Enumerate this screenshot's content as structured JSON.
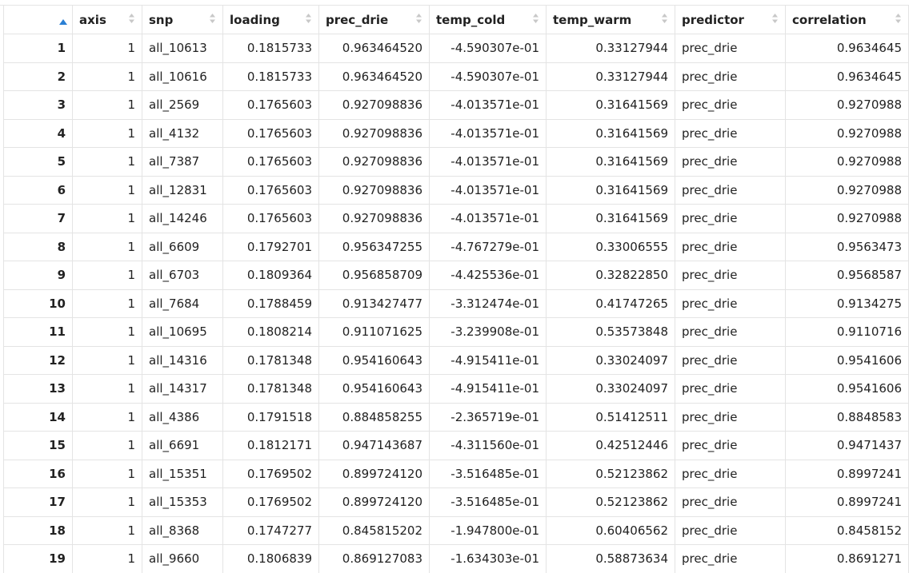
{
  "colors": {
    "sort_active": "#2a7fd4",
    "sort_inactive": "#c8c8c8",
    "grid": "#e4e4e4"
  },
  "columns": [
    {
      "key": "idx",
      "label": ""
    },
    {
      "key": "axis",
      "label": "axis"
    },
    {
      "key": "snp",
      "label": "snp"
    },
    {
      "key": "loading",
      "label": "loading"
    },
    {
      "key": "prec_drie",
      "label": "prec_drie"
    },
    {
      "key": "temp_cold",
      "label": "temp_cold"
    },
    {
      "key": "temp_warm",
      "label": "temp_warm"
    },
    {
      "key": "predictor",
      "label": "predictor"
    },
    {
      "key": "correlation",
      "label": "correlation"
    }
  ],
  "rows": [
    [
      "1",
      "1",
      "all_10613",
      "0.1815733",
      "0.963464520",
      "-4.590307e-01",
      "0.33127944",
      "prec_drie",
      "0.9634645"
    ],
    [
      "2",
      "1",
      "all_10616",
      "0.1815733",
      "0.963464520",
      "-4.590307e-01",
      "0.33127944",
      "prec_drie",
      "0.9634645"
    ],
    [
      "3",
      "1",
      "all_2569",
      "0.1765603",
      "0.927098836",
      "-4.013571e-01",
      "0.31641569",
      "prec_drie",
      "0.9270988"
    ],
    [
      "4",
      "1",
      "all_4132",
      "0.1765603",
      "0.927098836",
      "-4.013571e-01",
      "0.31641569",
      "prec_drie",
      "0.9270988"
    ],
    [
      "5",
      "1",
      "all_7387",
      "0.1765603",
      "0.927098836",
      "-4.013571e-01",
      "0.31641569",
      "prec_drie",
      "0.9270988"
    ],
    [
      "6",
      "1",
      "all_12831",
      "0.1765603",
      "0.927098836",
      "-4.013571e-01",
      "0.31641569",
      "prec_drie",
      "0.9270988"
    ],
    [
      "7",
      "1",
      "all_14246",
      "0.1765603",
      "0.927098836",
      "-4.013571e-01",
      "0.31641569",
      "prec_drie",
      "0.9270988"
    ],
    [
      "8",
      "1",
      "all_6609",
      "0.1792701",
      "0.956347255",
      "-4.767279e-01",
      "0.33006555",
      "prec_drie",
      "0.9563473"
    ],
    [
      "9",
      "1",
      "all_6703",
      "0.1809364",
      "0.956858709",
      "-4.425536e-01",
      "0.32822850",
      "prec_drie",
      "0.9568587"
    ],
    [
      "10",
      "1",
      "all_7684",
      "0.1788459",
      "0.913427477",
      "-3.312474e-01",
      "0.41747265",
      "prec_drie",
      "0.9134275"
    ],
    [
      "11",
      "1",
      "all_10695",
      "0.1808214",
      "0.911071625",
      "-3.239908e-01",
      "0.53573848",
      "prec_drie",
      "0.9110716"
    ],
    [
      "12",
      "1",
      "all_14316",
      "0.1781348",
      "0.954160643",
      "-4.915411e-01",
      "0.33024097",
      "prec_drie",
      "0.9541606"
    ],
    [
      "13",
      "1",
      "all_14317",
      "0.1781348",
      "0.954160643",
      "-4.915411e-01",
      "0.33024097",
      "prec_drie",
      "0.9541606"
    ],
    [
      "14",
      "1",
      "all_4386",
      "0.1791518",
      "0.884858255",
      "-2.365719e-01",
      "0.51412511",
      "prec_drie",
      "0.8848583"
    ],
    [
      "15",
      "1",
      "all_6691",
      "0.1812171",
      "0.947143687",
      "-4.311560e-01",
      "0.42512446",
      "prec_drie",
      "0.9471437"
    ],
    [
      "16",
      "1",
      "all_15351",
      "0.1769502",
      "0.899724120",
      "-3.516485e-01",
      "0.52123862",
      "prec_drie",
      "0.8997241"
    ],
    [
      "17",
      "1",
      "all_15353",
      "0.1769502",
      "0.899724120",
      "-3.516485e-01",
      "0.52123862",
      "prec_drie",
      "0.8997241"
    ],
    [
      "18",
      "1",
      "all_8368",
      "0.1747277",
      "0.845815202",
      "-1.947800e-01",
      "0.60406562",
      "prec_drie",
      "0.8458152"
    ],
    [
      "19",
      "1",
      "all_9660",
      "0.1806839",
      "0.869127083",
      "-1.634303e-01",
      "0.58873634",
      "prec_drie",
      "0.8691271"
    ]
  ]
}
